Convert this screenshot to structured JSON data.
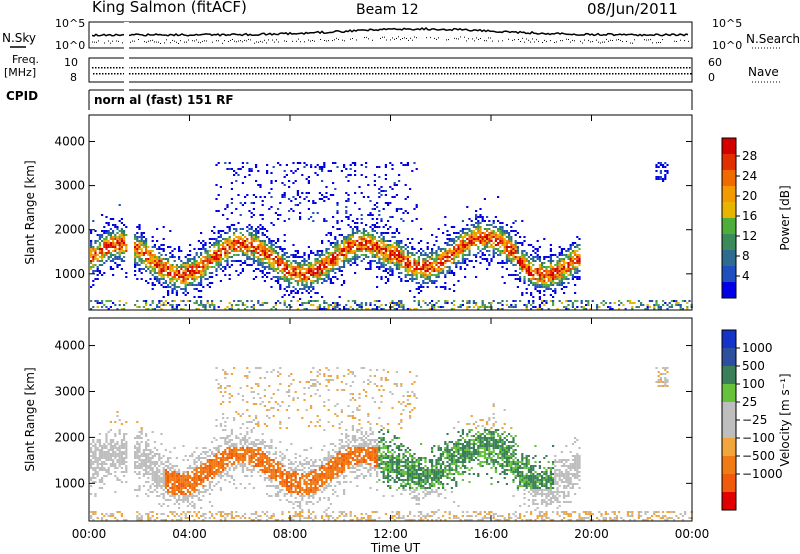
{
  "header": {
    "site": "King Salmon (fitACF)",
    "beam": "Beam 12",
    "date": "08/Jun/2011"
  },
  "summary_panel": {
    "left_label_1": "N.Sky",
    "left_label_2a": "Freq.",
    "left_label_2b": "[MHz]",
    "left_label_3": "CPID",
    "right_label_1": "N.Search",
    "right_label_2": "Nave",
    "left_ticks_top": [
      "10^5",
      "10^0"
    ],
    "right_ticks_top": [
      "10^5",
      "10^0"
    ],
    "left_ticks_freq": [
      "10",
      "8"
    ],
    "right_ticks_nave": [
      "60",
      "0"
    ],
    "cpid_text": "normal (fast) 151 RF"
  },
  "chart_data": [
    {
      "type": "heatmap",
      "name": "power-panel",
      "ylabel": "Slant Range [km]",
      "xlabel": "",
      "ylim": [
        180,
        4600
      ],
      "xlim": [
        0,
        24
      ],
      "ytick_labels": [
        "1000",
        "2000",
        "3000",
        "4000"
      ],
      "ytick_values": [
        1000,
        2000,
        3000,
        4000
      ],
      "colorbar": {
        "label": "Power [dB]",
        "ticks": [
          "4",
          "8",
          "12",
          "16",
          "20",
          "24",
          "28"
        ],
        "tick_values": [
          4,
          8,
          12,
          16,
          20,
          24,
          28
        ],
        "colors": [
          "#0000e6",
          "#1f4fbf",
          "#2e6b8f",
          "#3a8a5a",
          "#4dae3c",
          "#e8b400",
          "#f29a00",
          "#f06a00",
          "#e03000",
          "#d40000"
        ]
      },
      "features": [
        {
          "feature": "main scatter band",
          "time_range_h": [
            0.0,
            19.0
          ],
          "range_km": [
            800,
            2100
          ],
          "power_db": [
            4,
            26
          ]
        },
        {
          "feature": "upper scatter",
          "time_range_h": [
            5.0,
            13.0
          ],
          "range_km": [
            2200,
            3500
          ],
          "power_db": [
            4,
            8
          ]
        },
        {
          "feature": "near-range echoes",
          "time_range_h": [
            0.0,
            24.0
          ],
          "range_km": [
            200,
            400
          ],
          "power_db": [
            4,
            20
          ]
        }
      ]
    },
    {
      "type": "heatmap",
      "name": "velocity-panel",
      "ylabel": "Slant Range [km]",
      "xlabel": "Time UT",
      "ylim": [
        180,
        4600
      ],
      "xlim": [
        0,
        24
      ],
      "xtick_labels": [
        "00:00",
        "04:00",
        "08:00",
        "12:00",
        "16:00",
        "20:00",
        "00:00"
      ],
      "xtick_values": [
        0,
        4,
        8,
        12,
        16,
        20,
        24
      ],
      "ytick_labels": [
        "1000",
        "2000",
        "3000",
        "4000"
      ],
      "ytick_values": [
        1000,
        2000,
        3000,
        4000
      ],
      "colorbar": {
        "label": "Velocity [m s⁻¹]",
        "ticks": [
          "1000",
          "500",
          "100",
          "25",
          "−25",
          "−100",
          "−500",
          "−1000"
        ],
        "tick_values": [
          1000,
          500,
          100,
          25,
          -25,
          -100,
          -500,
          -1000
        ],
        "colors": [
          "#1433c8",
          "#2d4f9e",
          "#3a7f5a",
          "#66c23a",
          "#bebebe",
          "#bebebe",
          "#f0a63c",
          "#f07a14",
          "#f05a0a",
          "#e00000"
        ]
      },
      "features": [
        {
          "feature": "negative velocity region",
          "time_range_h": [
            3.0,
            11.5
          ],
          "range_km": [
            600,
            1800
          ],
          "velocity_ms": [
            -500,
            -100
          ]
        },
        {
          "feature": "positive velocity region",
          "time_range_h": [
            11.5,
            18.5
          ],
          "range_km": [
            900,
            2200
          ],
          "velocity_ms": [
            100,
            500
          ]
        },
        {
          "feature": "ground scatter",
          "time_range_h": [
            0.0,
            20.0
          ],
          "range_km": [
            400,
            2300
          ],
          "velocity_ms": [
            -25,
            25
          ]
        }
      ]
    }
  ]
}
